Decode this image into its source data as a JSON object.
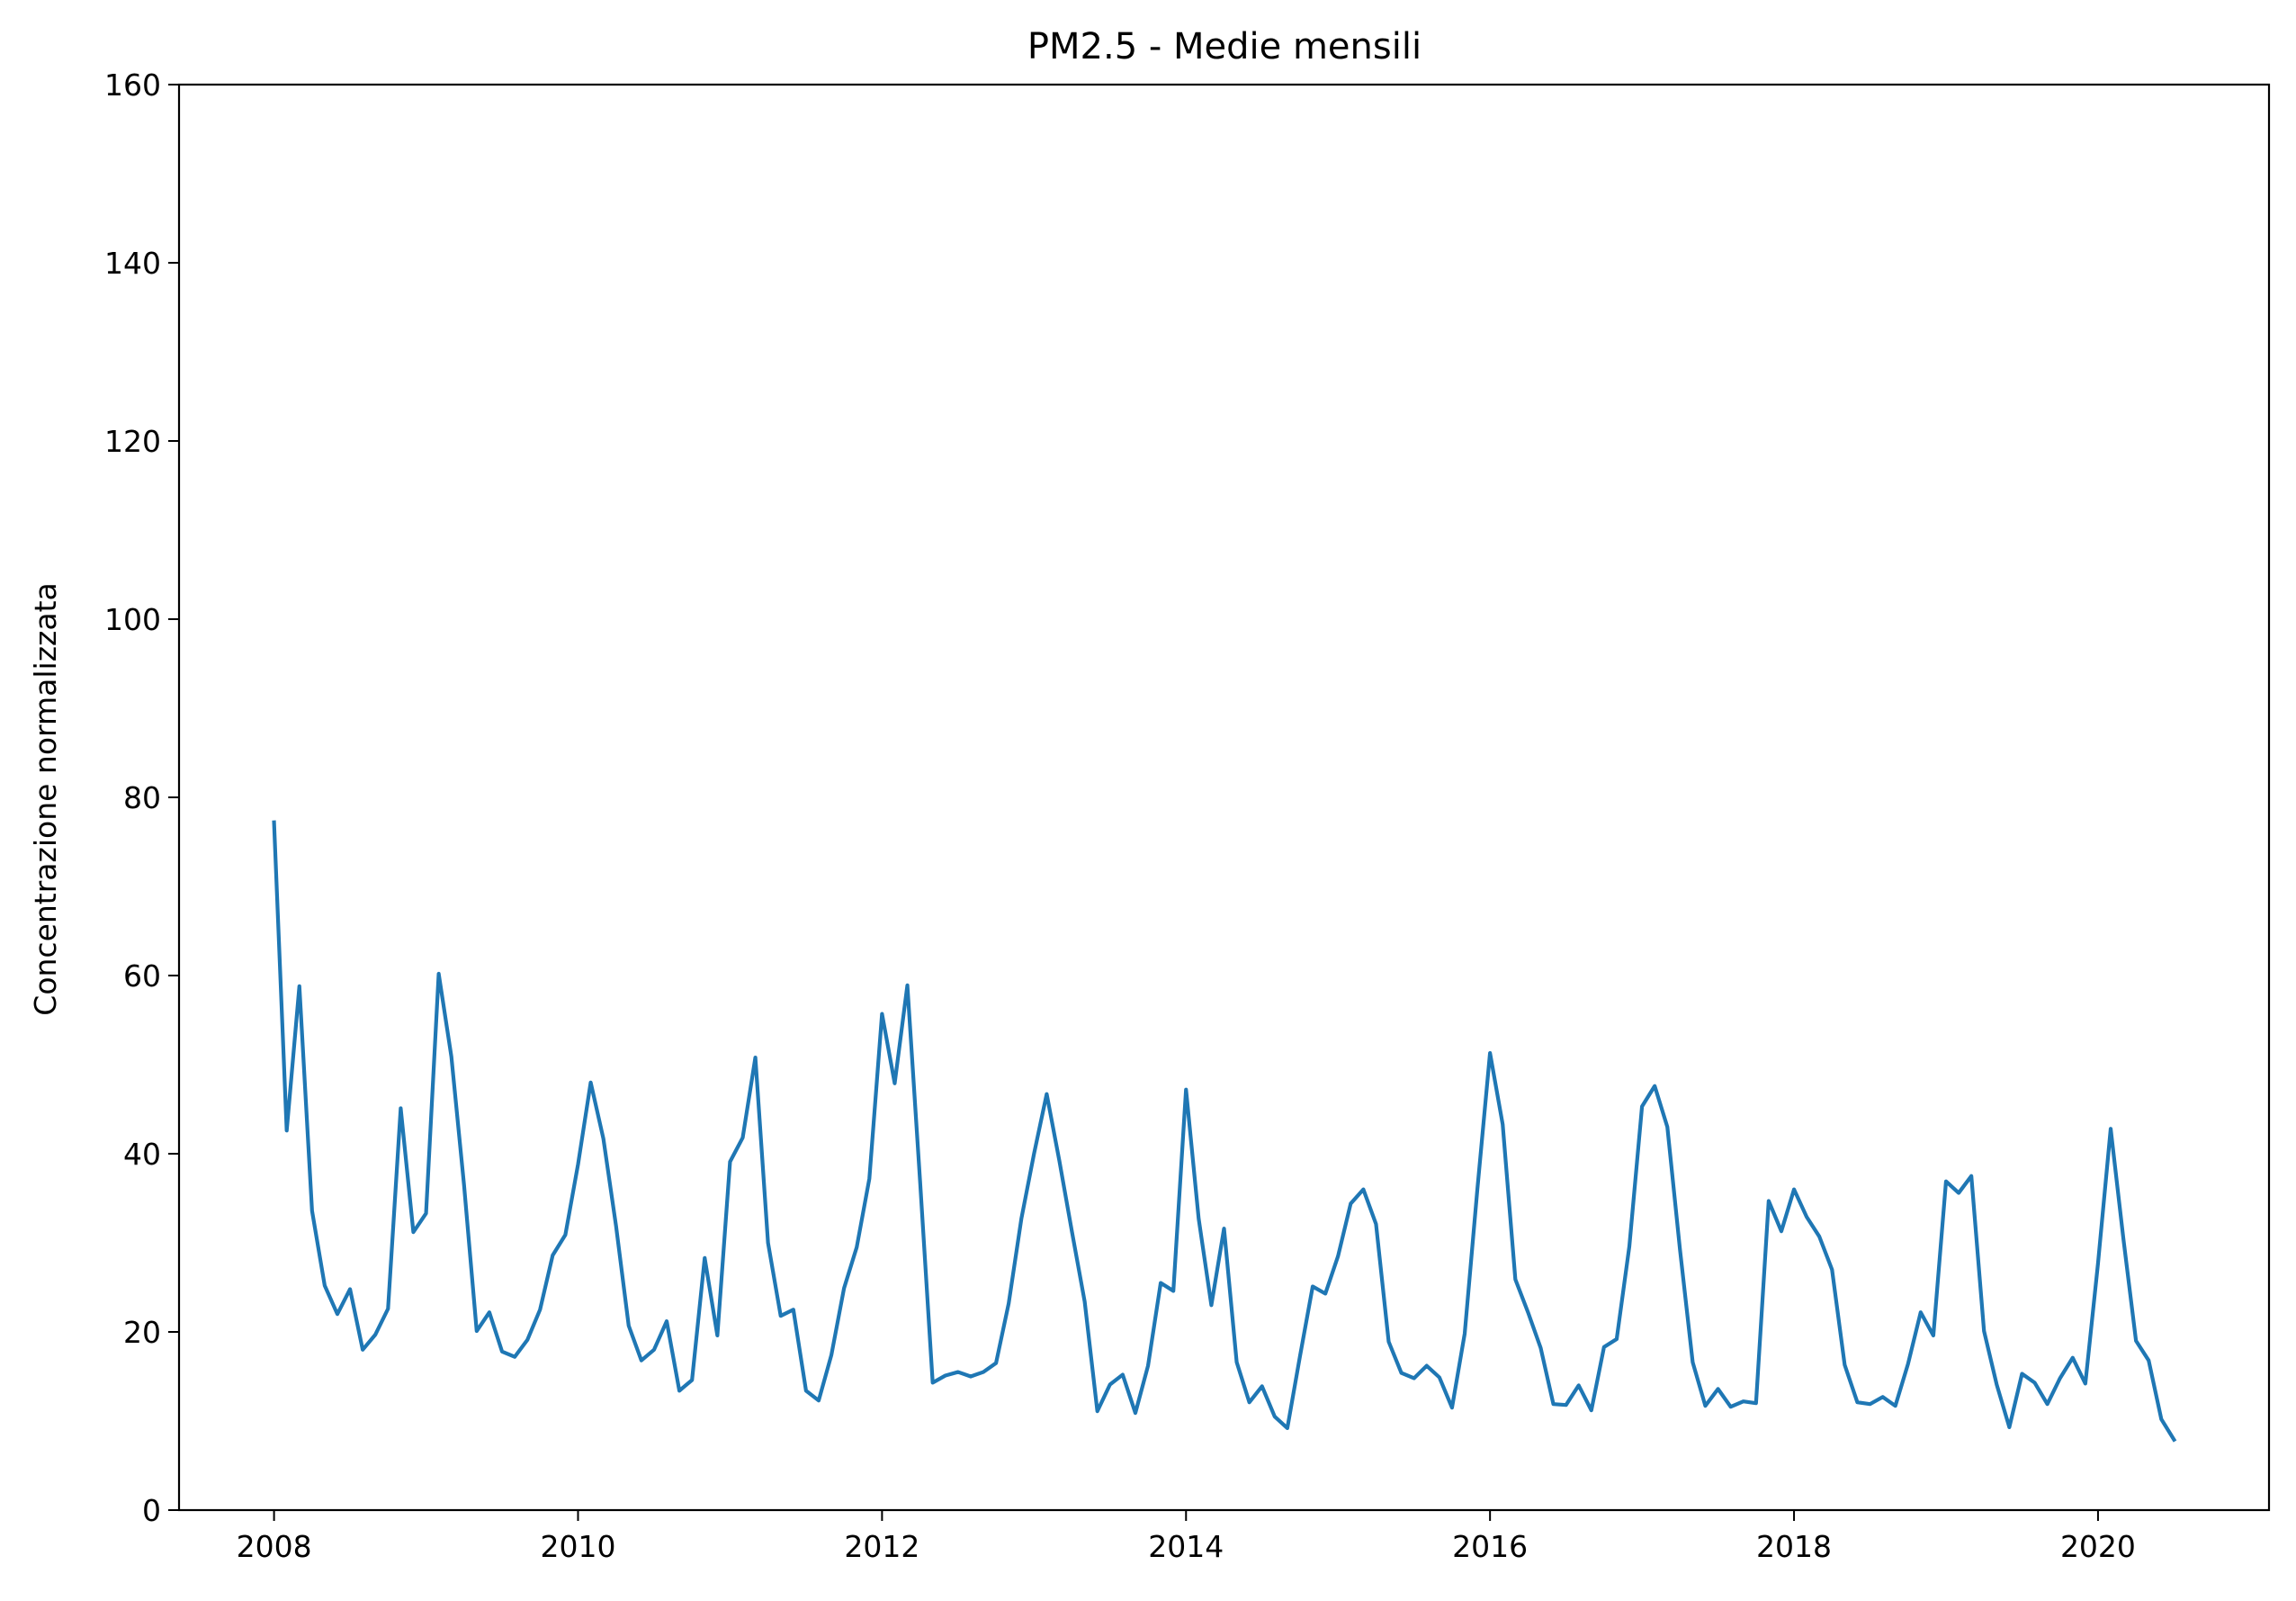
{
  "chart_data": {
    "type": "line",
    "title": "PM2.5 - Medie mensili",
    "xlabel": "",
    "ylabel": "Concentrazione normalizzata",
    "xlim": [
      2007.375,
      2021.125
    ],
    "ylim": [
      0,
      160
    ],
    "x_ticks": [
      2008,
      2010,
      2012,
      2014,
      2016,
      2018,
      2020
    ],
    "x_tick_labels": [
      "2008",
      "2010",
      "2012",
      "2014",
      "2016",
      "2018",
      "2020"
    ],
    "y_ticks": [
      0,
      20,
      40,
      60,
      80,
      100,
      120,
      140,
      160
    ],
    "y_tick_labels": [
      "0",
      "20",
      "40",
      "60",
      "80",
      "100",
      "120",
      "140",
      "160"
    ],
    "grid": false,
    "line_color": "#1f77b4",
    "x_start": "2008-01",
    "x_step": "1 month",
    "series": [
      {
        "values": [
          77.2,
          42.6,
          58.8,
          33.6,
          25.2,
          22.0,
          24.8,
          18.0,
          19.7,
          22.6,
          45.1,
          31.2,
          33.3,
          60.2,
          50.9,
          36.5,
          20.1,
          22.2,
          17.8,
          17.2,
          19.1,
          22.5,
          28.6,
          30.9,
          38.8,
          48.0,
          41.7,
          31.9,
          20.7,
          16.8,
          18.0,
          21.2,
          13.4,
          14.6,
          28.3,
          19.6,
          39.1,
          41.8,
          50.8,
          30.0,
          21.8,
          22.5,
          13.4,
          12.3,
          17.4,
          24.9,
          29.5,
          37.2,
          55.7,
          47.9,
          58.9,
          37.0,
          14.3,
          15.1,
          15.5,
          15.0,
          15.5,
          16.5,
          23.2,
          32.7,
          40.0,
          46.7,
          39.2,
          31.2,
          23.4,
          11.1,
          14.1,
          15.2,
          10.9,
          16.2,
          25.5,
          24.6,
          47.2,
          32.7,
          23.0,
          31.6,
          16.6,
          12.1,
          13.9,
          10.5,
          9.2,
          17.3,
          25.1,
          24.3,
          28.5,
          34.4,
          36.0,
          32.1,
          18.9,
          15.4,
          14.8,
          16.2,
          14.9,
          11.5,
          19.8,
          36.0,
          51.3,
          43.3,
          25.9,
          22.2,
          18.2,
          11.9,
          11.8,
          14.0,
          11.2,
          18.3,
          19.2,
          29.6,
          45.3,
          47.6,
          43.0,
          29.2,
          16.6,
          11.7,
          13.6,
          11.6,
          12.2,
          12.0,
          34.7,
          31.3,
          36.0,
          32.9,
          30.7,
          27.0,
          16.3,
          12.1,
          11.9,
          12.7,
          11.7,
          16.4,
          22.2,
          19.6,
          36.9,
          35.6,
          37.5,
          20.1,
          14.1,
          9.3,
          15.3,
          14.3,
          11.9,
          14.8,
          17.1,
          14.2,
          27.7,
          42.8,
          30.5,
          19.0,
          16.8,
          10.2,
          7.9
        ]
      }
    ]
  }
}
